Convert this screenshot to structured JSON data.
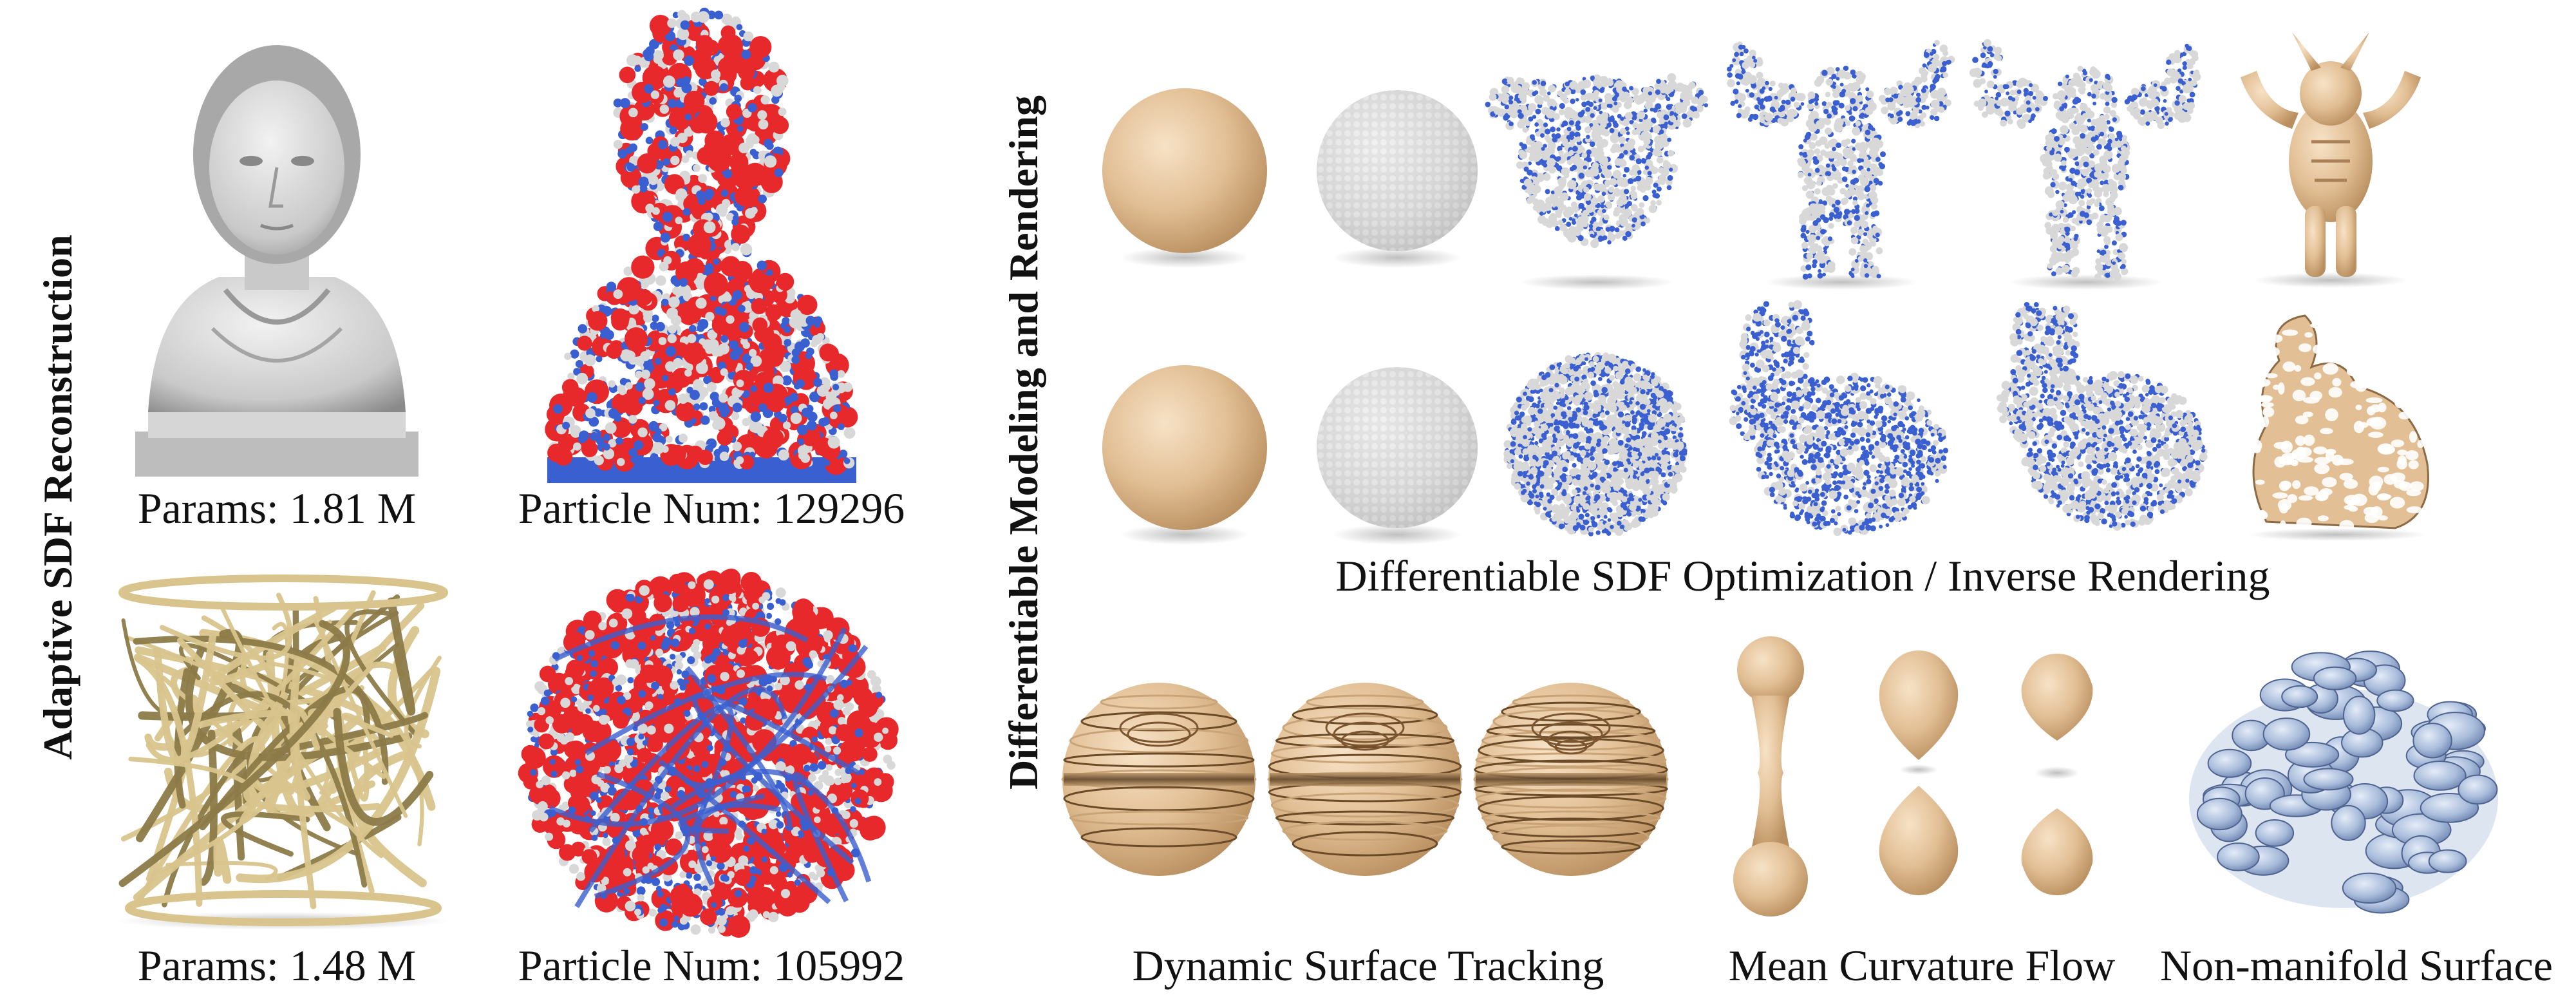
{
  "sections": {
    "left_label": "Adaptive SDF Reconstruction",
    "right_label": "Differentiable Modeling and Rendering"
  },
  "left": {
    "bust_caption": "Params: 1.81 M",
    "bust_particles_caption": "Particle Num: 129296",
    "vase_caption": "Params: 1.48 M",
    "vase_particles_caption": "Particle Num: 105992"
  },
  "right": {
    "optimization_caption": "Differentiable SDF Optimization / Inverse Rendering",
    "tracking_caption": "Dynamic Surface Tracking",
    "curvature_caption": "Mean Curvature Flow",
    "nonmanifold_caption": "Non-manifold Surface"
  },
  "colors": {
    "particle_red": "#e8292b",
    "particle_blue": "#3a5fd0",
    "particle_gray": "#d8d8d8",
    "surface_tan": "#e2bf95",
    "gold": "#d8c48c",
    "glass_blue": "#9eb4d6"
  }
}
